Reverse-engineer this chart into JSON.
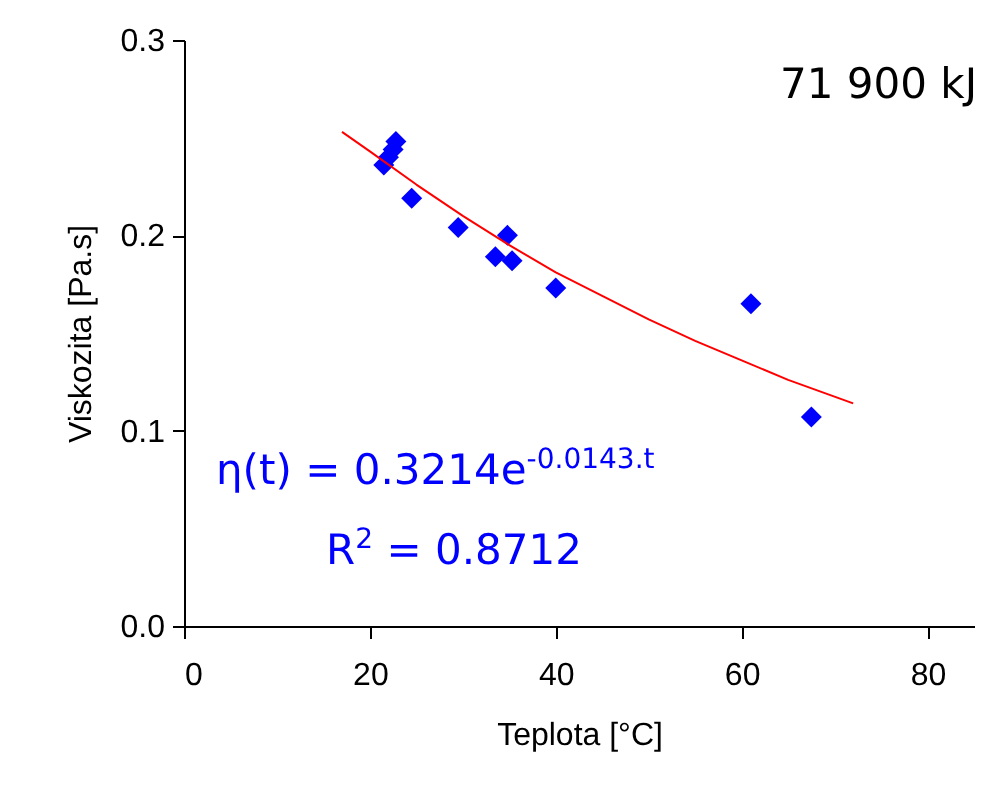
{
  "chart_data": {
    "type": "scatter",
    "xlabel": "Teplota [°C]",
    "ylabel": "Viskozita [Pa.s]",
    "xlim": [
      0,
      85
    ],
    "xticks": [
      0,
      20,
      40,
      60,
      80
    ],
    "ylim": [
      0,
      0.3
    ],
    "yticks": [
      {
        "value": 0,
        "label": "0.0"
      },
      0.1,
      0.2,
      0.3
    ],
    "grid": false,
    "annotations": [
      "71 900 kJ",
      "η(t) = 0.3214e$^{-0.0143.t}$",
      "R$^{2}$ = 0.8712"
    ],
    "series": [
      {
        "marker": "diamond",
        "color": "#0000ff",
        "x": [
          21.5,
          22,
          22.5,
          22.8,
          24.5,
          29.5,
          33.5,
          34.8,
          35.3,
          40,
          61,
          67.5
        ],
        "values": [
          0.236,
          0.24,
          0.244,
          0.248,
          0.219,
          0.204,
          0.189,
          0.2,
          0.187,
          0.173,
          0.165,
          0.107
        ]
      },
      {
        "type": "line",
        "color": "#ff0000",
        "x": [
          17,
          20,
          25,
          30,
          35,
          40,
          45,
          50,
          55,
          60,
          65,
          72
        ],
        "values": [
          0.253,
          0.243,
          0.226,
          0.21,
          0.195,
          0.181,
          0.169,
          0.157,
          0.146,
          0.136,
          0.126,
          0.114
        ]
      }
    ]
  }
}
